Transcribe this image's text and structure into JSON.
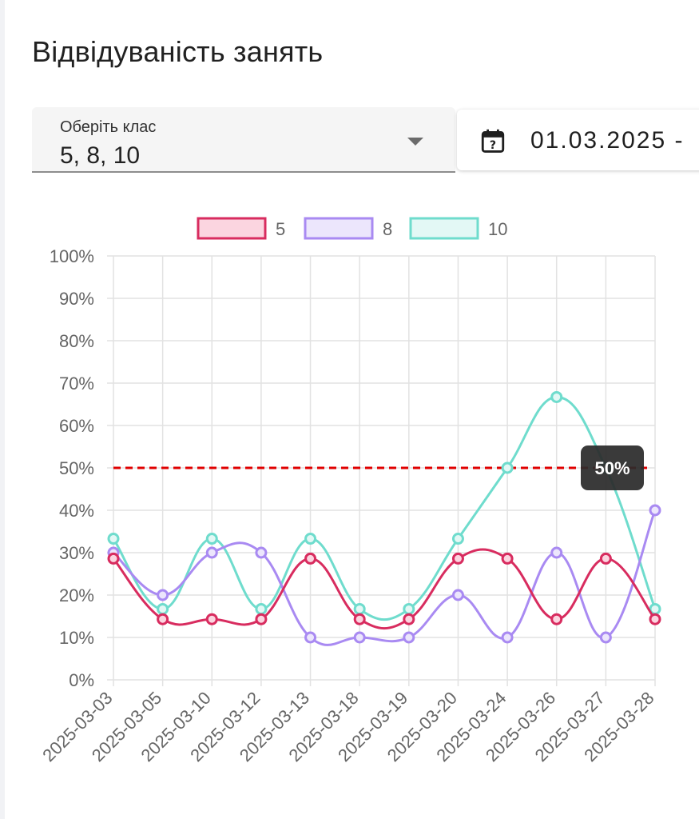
{
  "page": {
    "title": "Відвідуваність занять"
  },
  "filters": {
    "class_select": {
      "label": "Оберіть клас",
      "value": "5, 8, 10"
    },
    "date_range": {
      "value": "01.03.2025 -",
      "icon": "calendar-icon"
    }
  },
  "chart_data": {
    "type": "line",
    "title": "",
    "xlabel": "",
    "ylabel": "",
    "ylim": [
      0,
      100
    ],
    "y_unit": "%",
    "y_ticks": [
      "0%",
      "10%",
      "20%",
      "30%",
      "40%",
      "50%",
      "60%",
      "70%",
      "80%",
      "90%",
      "100%"
    ],
    "grid": true,
    "legend": "top-center",
    "categories": [
      "2025-03-03",
      "2025-03-05",
      "2025-03-10",
      "2025-03-12",
      "2025-03-13",
      "2025-03-18",
      "2025-03-19",
      "2025-03-20",
      "2025-03-24",
      "2025-03-26",
      "2025-03-27",
      "2025-03-28"
    ],
    "series": [
      {
        "name": "5",
        "color": "#d82c5f",
        "fill": "#fbd5e0",
        "values": [
          28.6,
          14.3,
          14.3,
          14.3,
          28.6,
          14.3,
          14.3,
          28.6,
          28.6,
          14.3,
          28.6,
          14.3
        ]
      },
      {
        "name": "8",
        "color": "#a98af2",
        "fill": "#ece6fc",
        "values": [
          30,
          20,
          30,
          30,
          10,
          10,
          10,
          20,
          10,
          30,
          10,
          40
        ]
      },
      {
        "name": "10",
        "color": "#6fdccd",
        "fill": "#e3f8f5",
        "values": [
          33.3,
          16.7,
          33.3,
          16.7,
          33.3,
          16.7,
          16.7,
          33.3,
          50,
          66.7,
          50,
          16.7
        ]
      }
    ],
    "threshold": {
      "value": 50,
      "label": "50%",
      "color": "#e00000"
    }
  }
}
